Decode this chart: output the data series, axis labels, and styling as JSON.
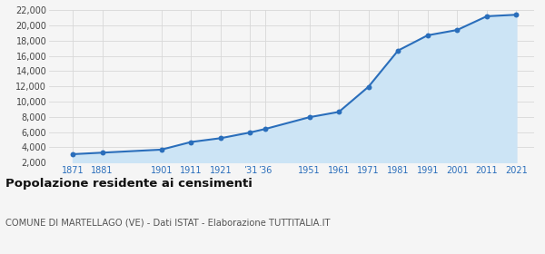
{
  "years": [
    1871,
    1881,
    1901,
    1911,
    1921,
    1931,
    1936,
    1951,
    1961,
    1971,
    1981,
    1991,
    2001,
    2011,
    2021
  ],
  "population": [
    3100,
    3300,
    3700,
    4700,
    5200,
    5950,
    6400,
    7950,
    8650,
    11950,
    16700,
    18700,
    19400,
    21200,
    21400
  ],
  "line_color": "#2a6ebb",
  "fill_color": "#cce4f5",
  "marker_color": "#2a6ebb",
  "bg_color": "#f5f5f5",
  "grid_color": "#d8d8d8",
  "title": "Popolazione residente ai censimenti",
  "subtitle": "COMUNE DI MARTELLAGO (VE) - Dati ISTAT - Elaborazione TUTTITALIA.IT",
  "ylim": [
    2000,
    22000
  ],
  "yticks": [
    2000,
    4000,
    6000,
    8000,
    10000,
    12000,
    14000,
    16000,
    18000,
    20000,
    22000
  ],
  "x_ticks": [
    1871,
    1881,
    1901,
    1911,
    1921,
    1931,
    1936,
    1951,
    1961,
    1971,
    1981,
    1991,
    2001,
    2011,
    2021
  ],
  "x_labels": [
    "1871",
    "1881",
    "1901",
    "1911",
    "1921",
    "’31",
    "’36",
    "1951",
    "1961",
    "1971",
    "1981",
    "1991",
    "2001",
    "2011",
    "2021"
  ],
  "xlim": [
    1863,
    2027
  ]
}
